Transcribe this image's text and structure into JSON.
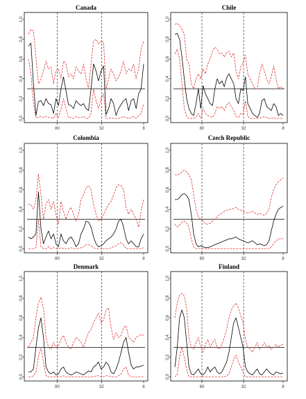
{
  "chart_data": [
    {
      "type": "line",
      "title": "Canada",
      "ylim": [
        0,
        1
      ],
      "yticks": [
        "0.0",
        "0.2",
        "0.4",
        "0.6",
        "0.8",
        "1.0"
      ],
      "xticks": [
        "80",
        "32",
        "8"
      ],
      "hline": 0.3,
      "grid": false,
      "series": [
        {
          "values": [
            0.73,
            0.76,
            0.35,
            0.03,
            0.17,
            0.18,
            0.13,
            0.2,
            0.15,
            0.14,
            0.05,
            0.2,
            0.13,
            0.3,
            0.42,
            0.28,
            0.14,
            0.13,
            0.1,
            0.18,
            0.15,
            0.13,
            0.15,
            0.1,
            0.08,
            0.3,
            0.55,
            0.48,
            0.38,
            0.48,
            0.53,
            0.04,
            0.1,
            0.2,
            0.15,
            0.03,
            0.1,
            0.14,
            0.18,
            0.2,
            0.08,
            0.18,
            0.2,
            0.1,
            0.25,
            0.3,
            0.55
          ]
        },
        {
          "values": [
            0.85,
            0.9,
            0.88,
            0.62,
            0.35,
            0.4,
            0.48,
            0.58,
            0.5,
            0.52,
            0.35,
            0.48,
            0.5,
            0.4,
            0.58,
            0.55,
            0.42,
            0.45,
            0.4,
            0.52,
            0.48,
            0.45,
            0.55,
            0.4,
            0.3,
            0.55,
            0.78,
            0.8,
            0.75,
            0.78,
            0.77,
            0.3,
            0.4,
            0.5,
            0.45,
            0.38,
            0.42,
            0.48,
            0.58,
            0.45,
            0.5,
            0.48,
            0.55,
            0.4,
            0.5,
            0.7,
            0.78
          ]
        },
        {
          "values": [
            0.6,
            0.45,
            0.15,
            0.01,
            0.01,
            0.02,
            0.01,
            0.02,
            0.01,
            0.01,
            0.0,
            0.05,
            0.01,
            0.1,
            0.2,
            0.1,
            0.01,
            0.01,
            0.0,
            0.02,
            0.01,
            0.01,
            0.02,
            0.0,
            0.0,
            0.05,
            0.3,
            0.18,
            0.1,
            0.2,
            0.25,
            0.0,
            0.0,
            0.01,
            0.0,
            0.0,
            0.0,
            0.01,
            0.02,
            0.01,
            0.0,
            0.01,
            0.02,
            0.0,
            0.03,
            0.05,
            0.15
          ]
        }
      ]
    },
    {
      "type": "line",
      "title": "Chile",
      "ylim": [
        0,
        1
      ],
      "yticks": [
        "0.0",
        "0.2",
        "0.4",
        "0.6",
        "0.8",
        "1.0"
      ],
      "xticks": [
        "80",
        "32",
        "8"
      ],
      "hline": 0.3,
      "grid": false,
      "series": [
        {
          "values": [
            0.85,
            0.86,
            0.8,
            0.62,
            0.4,
            0.2,
            0.1,
            0.05,
            0.03,
            0.15,
            0.3,
            0.1,
            0.33,
            0.25,
            0.2,
            0.15,
            0.13,
            0.3,
            0.4,
            0.35,
            0.38,
            0.32,
            0.41,
            0.45,
            0.4,
            0.35,
            0.2,
            0.15,
            0.3,
            0.28,
            0.42,
            0.15,
            0.1,
            0.05,
            0.03,
            0.01,
            0.05,
            0.18,
            0.2,
            0.12,
            0.1,
            0.08,
            0.15,
            0.12,
            0.03,
            0.05,
            0.03
          ]
        },
        {
          "values": [
            0.95,
            0.96,
            0.94,
            0.9,
            0.85,
            0.6,
            0.55,
            0.35,
            0.3,
            0.4,
            0.45,
            0.4,
            0.5,
            0.45,
            0.55,
            0.6,
            0.68,
            0.72,
            0.7,
            0.65,
            0.66,
            0.62,
            0.66,
            0.68,
            0.62,
            0.66,
            0.48,
            0.4,
            0.52,
            0.56,
            0.64,
            0.45,
            0.4,
            0.35,
            0.3,
            0.3,
            0.45,
            0.55,
            0.48,
            0.4,
            0.35,
            0.42,
            0.53,
            0.4,
            0.3,
            0.32,
            0.3
          ]
        },
        {
          "values": [
            0.65,
            0.7,
            0.6,
            0.35,
            0.1,
            0.02,
            0.0,
            0.0,
            0.0,
            0.01,
            0.05,
            0.0,
            0.1,
            0.05,
            0.03,
            0.02,
            0.01,
            0.05,
            0.12,
            0.1,
            0.12,
            0.08,
            0.14,
            0.16,
            0.12,
            0.08,
            0.02,
            0.01,
            0.05,
            0.04,
            0.18,
            0.02,
            0.0,
            0.0,
            0.0,
            0.0,
            0.0,
            0.01,
            0.02,
            0.01,
            0.0,
            0.0,
            0.01,
            0.0,
            0.0,
            0.0,
            0.0
          ]
        }
      ]
    },
    {
      "type": "line",
      "title": "Colombia",
      "ylim": [
        0,
        1
      ],
      "yticks": [
        "0.0",
        "0.2",
        "0.4",
        "0.6",
        "0.8",
        "1.0"
      ],
      "xticks": [
        "80",
        "32",
        "8"
      ],
      "hline": 0.3,
      "grid": false,
      "series": [
        {
          "values": [
            0.12,
            0.1,
            0.12,
            0.15,
            0.58,
            0.2,
            0.05,
            0.12,
            0.18,
            0.1,
            0.15,
            0.05,
            0.02,
            0.15,
            0.08,
            0.05,
            0.1,
            0.12,
            0.08,
            0.02,
            0.05,
            0.15,
            0.2,
            0.28,
            0.27,
            0.22,
            0.12,
            0.05,
            0.02,
            0.03,
            0.05,
            0.08,
            0.1,
            0.12,
            0.15,
            0.2,
            0.28,
            0.3,
            0.22,
            0.1,
            0.05,
            0.08,
            0.05,
            0.02,
            0.02,
            0.1,
            0.15
          ]
        },
        {
          "values": [
            0.45,
            0.45,
            0.4,
            0.5,
            0.76,
            0.55,
            0.3,
            0.45,
            0.5,
            0.4,
            0.48,
            0.35,
            0.25,
            0.48,
            0.38,
            0.3,
            0.38,
            0.42,
            0.35,
            0.28,
            0.35,
            0.5,
            0.55,
            0.62,
            0.64,
            0.6,
            0.45,
            0.35,
            0.28,
            0.3,
            0.35,
            0.4,
            0.45,
            0.48,
            0.55,
            0.62,
            0.65,
            0.64,
            0.6,
            0.42,
            0.35,
            0.4,
            0.35,
            0.3,
            0.22,
            0.38,
            0.5
          ]
        },
        {
          "values": [
            0.0,
            0.0,
            0.0,
            0.01,
            0.3,
            0.02,
            0.0,
            0.0,
            0.02,
            0.0,
            0.01,
            0.0,
            0.0,
            0.01,
            0.0,
            0.0,
            0.0,
            0.01,
            0.0,
            0.0,
            0.0,
            0.01,
            0.02,
            0.04,
            0.04,
            0.03,
            0.01,
            0.0,
            0.0,
            0.0,
            0.0,
            0.0,
            0.0,
            0.01,
            0.02,
            0.03,
            0.05,
            0.06,
            0.04,
            0.0,
            0.0,
            0.0,
            0.0,
            0.0,
            0.0,
            0.0,
            0.01
          ]
        }
      ]
    },
    {
      "type": "line",
      "title": "Czech Republic",
      "ylim": [
        0,
        1
      ],
      "yticks": [
        "0.0",
        "0.2",
        "0.4",
        "0.6",
        "0.8",
        "1.0"
      ],
      "xticks": [
        "80",
        "32",
        "8"
      ],
      "hline": 0.3,
      "grid": false,
      "series": [
        {
          "values": [
            0.5,
            0.5,
            0.52,
            0.55,
            0.56,
            0.54,
            0.5,
            0.35,
            0.15,
            0.05,
            0.02,
            0.03,
            0.02,
            0.01,
            0.01,
            0.02,
            0.03,
            0.04,
            0.05,
            0.06,
            0.07,
            0.08,
            0.09,
            0.1,
            0.1,
            0.11,
            0.12,
            0.1,
            0.09,
            0.08,
            0.07,
            0.06,
            0.07,
            0.08,
            0.06,
            0.04,
            0.05,
            0.04,
            0.03,
            0.04,
            0.08,
            0.18,
            0.28,
            0.35,
            0.4,
            0.42,
            0.43
          ]
        },
        {
          "values": [
            0.75,
            0.75,
            0.76,
            0.78,
            0.8,
            0.78,
            0.75,
            0.7,
            0.55,
            0.4,
            0.32,
            0.3,
            0.28,
            0.25,
            0.25,
            0.26,
            0.28,
            0.3,
            0.32,
            0.35,
            0.36,
            0.38,
            0.39,
            0.4,
            0.4,
            0.41,
            0.42,
            0.4,
            0.39,
            0.38,
            0.37,
            0.36,
            0.37,
            0.38,
            0.36,
            0.35,
            0.36,
            0.35,
            0.34,
            0.36,
            0.4,
            0.52,
            0.6,
            0.65,
            0.68,
            0.7,
            0.72
          ]
        },
        {
          "values": [
            0.25,
            0.22,
            0.24,
            0.27,
            0.28,
            0.26,
            0.22,
            0.1,
            0.02,
            0.0,
            0.0,
            0.0,
            0.0,
            0.0,
            0.0,
            0.0,
            0.0,
            0.0,
            0.0,
            0.0,
            0.0,
            0.0,
            0.0,
            0.0,
            0.0,
            0.0,
            0.0,
            0.0,
            0.0,
            0.0,
            0.0,
            0.0,
            0.0,
            0.0,
            0.0,
            0.0,
            0.0,
            0.0,
            0.0,
            0.0,
            0.0,
            0.02,
            0.05,
            0.08,
            0.1,
            0.1,
            0.1
          ]
        }
      ]
    },
    {
      "type": "line",
      "title": "Denmark",
      "ylim": [
        0,
        1
      ],
      "yticks": [
        "0.0",
        "0.2",
        "0.4",
        "0.6",
        "0.8",
        "1.0"
      ],
      "xticks": [
        "80",
        "32",
        "8"
      ],
      "hline": 0.3,
      "grid": false,
      "series": [
        {
          "values": [
            0.05,
            0.05,
            0.08,
            0.3,
            0.5,
            0.6,
            0.4,
            0.1,
            0.05,
            0.03,
            0.05,
            0.02,
            0.03,
            0.08,
            0.1,
            0.05,
            0.03,
            0.02,
            0.03,
            0.05,
            0.04,
            0.03,
            0.02,
            0.04,
            0.06,
            0.05,
            0.1,
            0.12,
            0.15,
            0.08,
            0.1,
            0.15,
            0.12,
            0.05,
            0.03,
            0.08,
            0.15,
            0.25,
            0.35,
            0.4,
            0.25,
            0.12,
            0.08,
            0.1,
            0.1,
            0.11,
            0.12
          ]
        },
        {
          "values": [
            0.3,
            0.35,
            0.4,
            0.6,
            0.75,
            0.81,
            0.7,
            0.4,
            0.3,
            0.28,
            0.35,
            0.3,
            0.32,
            0.38,
            0.42,
            0.35,
            0.3,
            0.28,
            0.35,
            0.4,
            0.38,
            0.35,
            0.3,
            0.38,
            0.45,
            0.48,
            0.55,
            0.6,
            0.65,
            0.55,
            0.58,
            0.68,
            0.7,
            0.5,
            0.38,
            0.45,
            0.4,
            0.42,
            0.5,
            0.52,
            0.4,
            0.38,
            0.35,
            0.4,
            0.42,
            0.43,
            0.42
          ]
        },
        {
          "values": [
            0.0,
            0.0,
            0.01,
            0.05,
            0.2,
            0.3,
            0.15,
            0.01,
            0.0,
            0.0,
            0.0,
            0.0,
            0.0,
            0.0,
            0.01,
            0.0,
            0.0,
            0.0,
            0.0,
            0.0,
            0.0,
            0.0,
            0.0,
            0.0,
            0.0,
            0.0,
            0.0,
            0.01,
            0.01,
            0.0,
            0.0,
            0.01,
            0.01,
            0.0,
            0.0,
            0.0,
            0.01,
            0.03,
            0.08,
            0.1,
            0.02,
            0.0,
            0.0,
            0.0,
            0.0,
            0.0,
            0.0
          ]
        }
      ]
    },
    {
      "type": "line",
      "title": "Finland",
      "ylim": [
        0,
        1
      ],
      "yticks": [
        "0.0",
        "0.2",
        "0.4",
        "0.6",
        "0.8",
        "1.0"
      ],
      "xticks": [
        "80",
        "32",
        "8"
      ],
      "hline": 0.3,
      "grid": false,
      "series": [
        {
          "values": [
            0.1,
            0.3,
            0.6,
            0.68,
            0.6,
            0.35,
            0.1,
            0.03,
            0.02,
            0.05,
            0.08,
            0.03,
            0.02,
            0.05,
            0.1,
            0.05,
            0.08,
            0.1,
            0.05,
            0.03,
            0.05,
            0.1,
            0.15,
            0.25,
            0.4,
            0.55,
            0.6,
            0.5,
            0.4,
            0.3,
            0.1,
            0.05,
            0.03,
            0.02,
            0.05,
            0.08,
            0.03,
            0.02,
            0.05,
            0.08,
            0.05,
            0.03,
            0.02,
            0.05,
            0.04,
            0.03,
            0.04
          ]
        },
        {
          "values": [
            0.6,
            0.75,
            0.83,
            0.85,
            0.82,
            0.7,
            0.4,
            0.3,
            0.28,
            0.35,
            0.4,
            0.3,
            0.25,
            0.33,
            0.38,
            0.3,
            0.35,
            0.38,
            0.3,
            0.28,
            0.33,
            0.4,
            0.48,
            0.6,
            0.68,
            0.72,
            0.75,
            0.7,
            0.62,
            0.55,
            0.38,
            0.3,
            0.28,
            0.25,
            0.3,
            0.35,
            0.28,
            0.3,
            0.35,
            0.3,
            0.32,
            0.28,
            0.3,
            0.33,
            0.3,
            0.32,
            0.33
          ]
        },
        {
          "values": [
            0.0,
            0.02,
            0.2,
            0.3,
            0.2,
            0.08,
            0.0,
            0.0,
            0.0,
            0.0,
            0.0,
            0.0,
            0.0,
            0.0,
            0.0,
            0.0,
            0.0,
            0.0,
            0.0,
            0.0,
            0.0,
            0.0,
            0.01,
            0.03,
            0.1,
            0.18,
            0.22,
            0.15,
            0.1,
            0.05,
            0.0,
            0.0,
            0.0,
            0.0,
            0.0,
            0.0,
            0.0,
            0.0,
            0.0,
            0.0,
            0.0,
            0.0,
            0.0,
            0.0,
            0.0,
            0.0,
            0.0
          ]
        }
      ]
    }
  ],
  "colors": {
    "median": "#000000",
    "bands": "#e03030",
    "reference": "#000000",
    "vlines": "#333333"
  }
}
